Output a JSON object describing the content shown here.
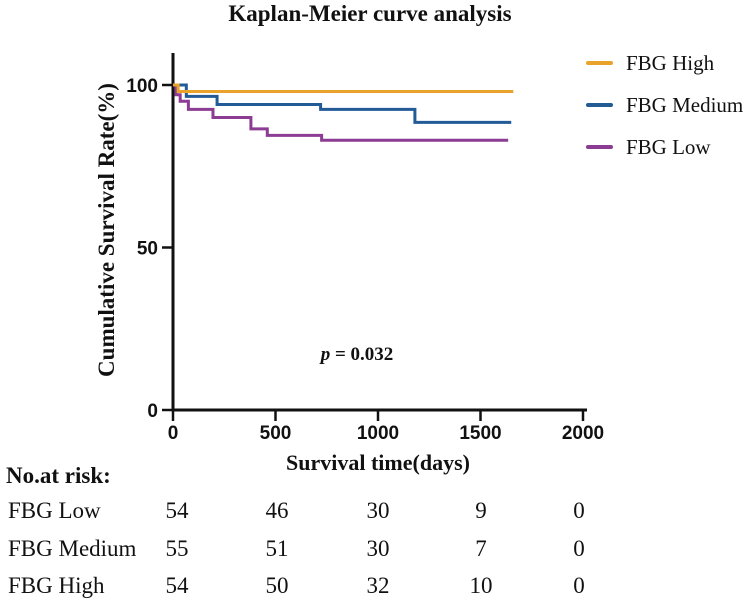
{
  "chart_data": {
    "type": "line",
    "variant": "kaplan_meier_step",
    "title": "Kaplan-Meier curve analysis",
    "xlabel": "Survival time(days)",
    "ylabel": "Cumulative Survival Rate(%)",
    "xlim": [
      0,
      2000
    ],
    "ylim": [
      0,
      100
    ],
    "xticks": [
      0,
      500,
      1000,
      1500,
      2000
    ],
    "yticks": [
      100,
      50,
      0
    ],
    "grid": false,
    "legend_position": "top-right-outside",
    "annotation": {
      "prefix": "p",
      "text": " = 0.032"
    },
    "axis_color": "#111111",
    "series": [
      {
        "name": "FBG High",
        "color": "#EAA32A",
        "steps_day_percent": [
          [
            0,
            100
          ],
          [
            25,
            98
          ],
          [
            1660,
            98
          ]
        ]
      },
      {
        "name": "FBG Medium",
        "color": "#235B97",
        "steps_day_percent": [
          [
            0,
            100
          ],
          [
            65,
            96.5
          ],
          [
            215,
            94
          ],
          [
            720,
            92.5
          ],
          [
            1180,
            88.5
          ],
          [
            1650,
            88.5
          ]
        ]
      },
      {
        "name": "FBG Low",
        "color": "#8C3C92",
        "steps_day_percent": [
          [
            0,
            100
          ],
          [
            15,
            97
          ],
          [
            35,
            95
          ],
          [
            75,
            92.5
          ],
          [
            195,
            90
          ],
          [
            380,
            86.5
          ],
          [
            460,
            84.5
          ],
          [
            725,
            83
          ],
          [
            1635,
            83
          ]
        ]
      }
    ]
  },
  "risk_table": {
    "heading": "No.at risk:",
    "time_points": [
      0,
      500,
      1000,
      1500,
      2000
    ],
    "rows": [
      {
        "label": "FBG Low",
        "counts": [
          "54",
          "46",
          "30",
          "9",
          "0"
        ]
      },
      {
        "label": "FBG Medium",
        "counts": [
          "55",
          "51",
          "30",
          "7",
          "0"
        ]
      },
      {
        "label": "FBG High",
        "counts": [
          "54",
          "50",
          "32",
          "10",
          "0"
        ]
      }
    ]
  }
}
